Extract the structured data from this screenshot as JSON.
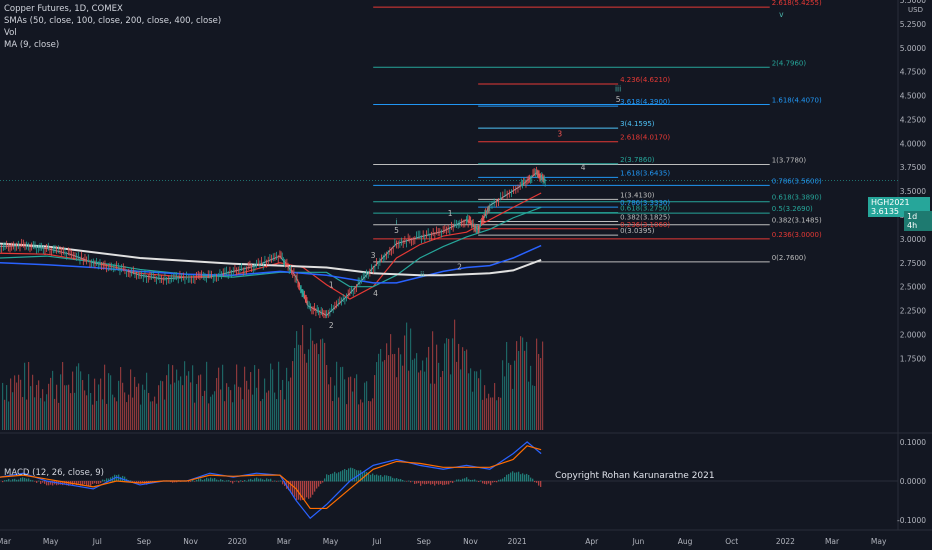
{
  "header": {
    "title": "Copper Futures, 1D, COMEX",
    "sma": "SMAs (50, close, 100, close, 200, close, 400, close)",
    "vol": "Vol",
    "ma": "MA (9, close)",
    "macd": "MACD (12, 26, close, 9)",
    "copyright": "Copyright Rohan Karunaratne 2021"
  },
  "price_label": {
    "symbol": "HGH2021",
    "value": "3.6135",
    "countdown": "1d 4h"
  },
  "currency": "USD",
  "colors": {
    "background": "#131722",
    "up": "#26a69a",
    "down": "#ef5350",
    "red_line": "#e53935",
    "teal_line": "#26a69a",
    "blue_line": "#2962ff",
    "grey_line": "#bdbdbd",
    "cyan_label": "#4fc3f7",
    "wave_green": "#4db6ac"
  },
  "chart_data": [
    {
      "type": "line",
      "title": "Copper Futures, 1D, COMEX",
      "ylabel": "USD",
      "ylim": [
        1.0,
        5.5
      ],
      "y_ticks": [
        "5.5000",
        "5.2500",
        "5.0000",
        "4.7500",
        "4.5000",
        "4.2500",
        "4.0000",
        "3.7500",
        "3.5000",
        "3.2500",
        "3.0000",
        "2.7500",
        "2.5000",
        "2.2500",
        "2.0000",
        "1.7500"
      ],
      "x_ticks": [
        "Mar",
        "May",
        "Jul",
        "Sep",
        "Nov",
        "2020",
        "Mar",
        "May",
        "Jul",
        "Sep",
        "Nov",
        "2021",
        "Apr",
        "Jun",
        "Aug",
        "Oct",
        "2022",
        "Mar",
        "May"
      ],
      "x_months_range": [
        0,
        38.5
      ],
      "series": [
        {
          "x": [
            0,
            1,
            2,
            3,
            4,
            5,
            6,
            7,
            8,
            9,
            10,
            11,
            12,
            12.7,
            13.2,
            14,
            15,
            16,
            17,
            18,
            19,
            20,
            20.5,
            21,
            22.3,
            23,
            23.4
          ],
          "y": [
            2.92,
            2.93,
            2.9,
            2.84,
            2.75,
            2.7,
            2.62,
            2.58,
            2.6,
            2.6,
            2.66,
            2.72,
            2.82,
            2.6,
            2.3,
            2.2,
            2.43,
            2.7,
            2.95,
            3.02,
            3.08,
            3.2,
            3.1,
            3.35,
            3.55,
            3.69,
            3.61
          ]
        },
        {
          "name": "SMA 50",
          "x": [
            0,
            2,
            4,
            6,
            8,
            10,
            12,
            13,
            14,
            15,
            16,
            17,
            18,
            19,
            20,
            21,
            22,
            23.2
          ],
          "y": [
            2.85,
            2.84,
            2.76,
            2.64,
            2.6,
            2.62,
            2.75,
            2.7,
            2.52,
            2.37,
            2.5,
            2.8,
            2.94,
            3.03,
            3.07,
            3.2,
            3.33,
            3.48
          ]
        },
        {
          "name": "SMA 100",
          "x": [
            0,
            2,
            4,
            6,
            8,
            10,
            12,
            14,
            15,
            16,
            17,
            18,
            19,
            20,
            21,
            22,
            23.2
          ],
          "y": [
            2.8,
            2.82,
            2.76,
            2.68,
            2.63,
            2.6,
            2.65,
            2.65,
            2.5,
            2.5,
            2.62,
            2.8,
            2.92,
            3.02,
            3.1,
            3.22,
            3.33
          ]
        },
        {
          "name": "SMA 200",
          "x": [
            0,
            2,
            4,
            6,
            8,
            10,
            12,
            14,
            16,
            17,
            18,
            19,
            20,
            21,
            22,
            23.2
          ],
          "y": [
            2.75,
            2.73,
            2.7,
            2.66,
            2.63,
            2.62,
            2.66,
            2.62,
            2.54,
            2.54,
            2.6,
            2.66,
            2.7,
            2.72,
            2.8,
            2.93
          ]
        },
        {
          "name": "SMA 400",
          "x": [
            0,
            2,
            4,
            6,
            8,
            10,
            12,
            14,
            16,
            17,
            18,
            19,
            20,
            21,
            22,
            23.2
          ],
          "y": [
            2.95,
            2.92,
            2.86,
            2.8,
            2.77,
            2.74,
            2.72,
            2.7,
            2.64,
            2.63,
            2.62,
            2.62,
            2.63,
            2.64,
            2.67,
            2.78
          ]
        }
      ],
      "levels": [
        {
          "label": "2.618(5.4255)",
          "value": 5.4255,
          "x": [
            16,
            33
          ],
          "color": "#e53935"
        },
        {
          "label": "2(4.7960)",
          "value": 4.796,
          "x": [
            16,
            33
          ],
          "color": "#26a69a"
        },
        {
          "label": "4.236(4.6210)",
          "value": 4.621,
          "x": [
            20.5,
            26.5
          ],
          "color": "#e53935"
        },
        {
          "label": "3.618(4.3900)",
          "value": 4.39,
          "x": [
            20.5,
            26.5
          ],
          "color": "#2196f3"
        },
        {
          "label": "1.618(4.4070)",
          "value": 4.407,
          "x": [
            16,
            33
          ],
          "color": "#2196f3"
        },
        {
          "label": "3(4.1595)",
          "value": 4.1595,
          "x": [
            20.5,
            26.5
          ],
          "color": "#4fc3f7"
        },
        {
          "label": "2.618(4.0170)",
          "value": 4.017,
          "x": [
            20.5,
            26.5
          ],
          "color": "#e53935"
        },
        {
          "label": "1(3.7780)",
          "value": 3.778,
          "x": [
            16,
            33
          ],
          "color": "#bdbdbd"
        },
        {
          "label": "2(3.7860)",
          "value": 3.786,
          "x": [
            20.5,
            26.5
          ],
          "color": "#26a69a"
        },
        {
          "label": "1.618(3.6435)",
          "value": 3.6435,
          "x": [
            20.5,
            26.5
          ],
          "color": "#2196f3"
        },
        {
          "label": "0.786(3.5600)",
          "value": 3.56,
          "x": [
            16,
            33
          ],
          "color": "#2196f3"
        },
        {
          "label": "1(3.4130)",
          "value": 3.413,
          "x": [
            20.5,
            26.5
          ],
          "color": "#bdbdbd"
        },
        {
          "label": "0.618(3.3890)",
          "value": 3.389,
          "x": [
            16,
            33
          ],
          "color": "#26a69a"
        },
        {
          "label": "0.786(3.3330)",
          "value": 3.333,
          "x": [
            20.5,
            26.5
          ],
          "color": "#2196f3"
        },
        {
          "label": "0.5(3.2690)",
          "value": 3.269,
          "x": [
            16,
            33
          ],
          "color": "#26a69a"
        },
        {
          "label": "0.618(3.2750)",
          "value": 3.275,
          "x": [
            20.5,
            26.5
          ],
          "color": "#26a69a"
        },
        {
          "label": "0.382(3.1825)",
          "value": 3.1825,
          "x": [
            20.5,
            26.5
          ],
          "color": "#bdbdbd"
        },
        {
          "label": "0.382(3.1485)",
          "value": 3.1485,
          "x": [
            16,
            33
          ],
          "color": "#bdbdbd"
        },
        {
          "label": "0.236(3.1060)",
          "value": 3.106,
          "x": [
            20.5,
            26.5
          ],
          "color": "#e53935"
        },
        {
          "label": "0(3.0395)",
          "value": 3.0395,
          "x": [
            20.5,
            26.5
          ],
          "color": "#bdbdbd"
        },
        {
          "label": "0.236(3.0000)",
          "value": 3.0,
          "x": [
            16,
            33
          ],
          "color": "#e53935"
        },
        {
          "label": "0(2.7600)",
          "value": 2.76,
          "x": [
            16,
            33
          ],
          "color": "#bdbdbd"
        }
      ],
      "wave_labels": [
        {
          "text": "v",
          "x": 33.5,
          "y": 5.32,
          "color": "#4db6ac"
        },
        {
          "text": "iii",
          "x": 26.5,
          "y": 4.54,
          "color": "#4db6ac"
        },
        {
          "text": "5",
          "x": 26.5,
          "y": 4.43,
          "color": "#bdbdbd"
        },
        {
          "text": "3",
          "x": 24,
          "y": 4.07,
          "color": "#ef5350"
        },
        {
          "text": "4",
          "x": 25,
          "y": 3.72,
          "color": "#bdbdbd"
        },
        {
          "text": "i",
          "x": 17,
          "y": 3.15,
          "color": "#4db6ac"
        },
        {
          "text": "5",
          "x": 17,
          "y": 3.06,
          "color": "#bdbdbd"
        },
        {
          "text": "1",
          "x": 19.3,
          "y": 3.24,
          "color": "#bdbdbd"
        },
        {
          "text": "3",
          "x": 16,
          "y": 2.8,
          "color": "#bdbdbd"
        },
        {
          "text": "ii",
          "x": 18.1,
          "y": 2.6,
          "color": "#4db6ac"
        },
        {
          "text": "2",
          "x": 19.7,
          "y": 2.68,
          "color": "#bdbdbd"
        },
        {
          "text": "1",
          "x": 14.2,
          "y": 2.49,
          "color": "#bdbdbd"
        },
        {
          "text": "4",
          "x": 16.1,
          "y": 2.4,
          "color": "#bdbdbd"
        },
        {
          "text": "2",
          "x": 14.2,
          "y": 2.07,
          "color": "#bdbdbd"
        }
      ]
    },
    {
      "type": "line",
      "title": "MACD (12, 26, close, 9)",
      "ylim": [
        -0.12,
        0.115
      ],
      "y_ticks": [
        "0.1000",
        "0.0000",
        "-0.1000"
      ],
      "series": [
        {
          "x": [
            0,
            1,
            2,
            3,
            4,
            5,
            6,
            7,
            8,
            9,
            10,
            11,
            12,
            12.7,
            13.3,
            14,
            15,
            16,
            17,
            18,
            19,
            20,
            21,
            22,
            22.6,
            23.2
          ],
          "y": [
            0.01,
            0.02,
            0.0,
            -0.01,
            -0.02,
            0.01,
            -0.01,
            0.0,
            0.0,
            0.02,
            0.01,
            0.02,
            0.015,
            -0.05,
            -0.095,
            -0.06,
            0.0,
            0.04,
            0.055,
            0.04,
            0.03,
            0.04,
            0.03,
            0.07,
            0.1,
            0.07
          ]
        },
        {
          "x": [
            0,
            1,
            2,
            3,
            4,
            5,
            6,
            7,
            8,
            9,
            10,
            11,
            12,
            12.7,
            13.3,
            14,
            15,
            16,
            17,
            18,
            19,
            20,
            21,
            22,
            22.6,
            23.2
          ],
          "y": [
            0.01,
            0.015,
            0.005,
            -0.005,
            -0.015,
            0.0,
            -0.005,
            0.0,
            0.0,
            0.015,
            0.012,
            0.015,
            0.015,
            -0.02,
            -0.07,
            -0.07,
            -0.02,
            0.03,
            0.05,
            0.045,
            0.035,
            0.035,
            0.035,
            0.055,
            0.09,
            0.08
          ]
        }
      ]
    }
  ]
}
